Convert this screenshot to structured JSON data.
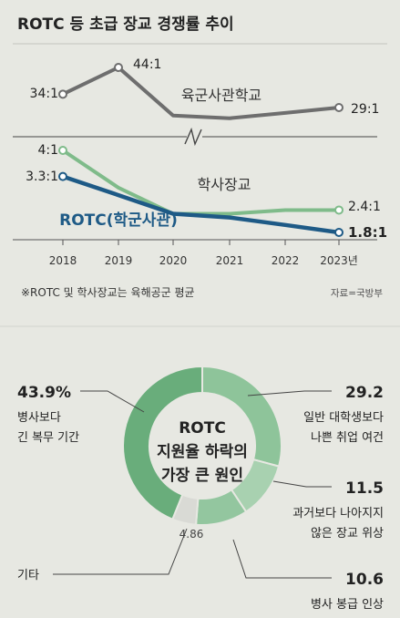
{
  "title": "ROTC 등 초급 장교 경쟁률 추이",
  "line_note": "※ROTC 및 학사장교는 육해공군 평균",
  "source": "자료=국방부",
  "chart_data": [
    {
      "type": "line",
      "title": "ROTC 등 초급 장교 경쟁률 추이",
      "categories": [
        "2018",
        "2019",
        "2020",
        "2021",
        "2022",
        "2023년"
      ],
      "axis_break": true,
      "series": [
        {
          "name": "육군사관학교",
          "values": [
            34,
            44,
            26,
            25,
            27,
            29
          ],
          "color": "#6e6e6e",
          "labels": {
            "0": "34:1",
            "1": "44:1",
            "5": "29:1"
          }
        },
        {
          "name": "학사장교",
          "values": [
            4.0,
            3.0,
            2.3,
            2.3,
            2.4,
            2.4
          ],
          "color": "#7fbb8a",
          "labels": {
            "0": "4:1",
            "5": "2.4:1"
          }
        },
        {
          "name": "ROTC(학군사관)",
          "values": [
            3.3,
            2.8,
            2.3,
            2.2,
            2.0,
            1.8
          ],
          "color": "#1e5a86",
          "labels": {
            "0": "3.3:1",
            "5": "1.8:1"
          }
        }
      ]
    },
    {
      "type": "pie",
      "title": "ROTC 지원율 하락의 가장 큰 원인",
      "title_lines": [
        "ROTC",
        "지원율 하락의",
        "가장 큰 원인"
      ],
      "slices": [
        {
          "value": 43.9,
          "value_label": "43.9%",
          "label": [
            "병사보다",
            "긴 복무 기간"
          ],
          "color": "#69ad7b"
        },
        {
          "value": 29.2,
          "value_label": "29.2",
          "label": [
            "일반 대학생보다",
            "나쁜 취업 여건"
          ],
          "color": "#8ec49a"
        },
        {
          "value": 11.5,
          "value_label": "11.5",
          "label": [
            "과거보다 나아지지",
            "않은 장교 위상"
          ],
          "color": "#a8d1b0"
        },
        {
          "value": 10.6,
          "value_label": "10.6",
          "label": [
            "병사 봉급 인상"
          ],
          "color": "#93c69f"
        },
        {
          "value": 4.86,
          "value_label": "4.86",
          "label": [
            "기타"
          ],
          "color": "#d9dad5"
        }
      ]
    }
  ]
}
